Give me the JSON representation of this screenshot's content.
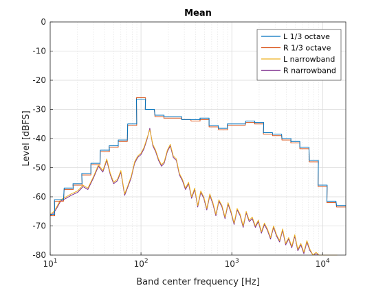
{
  "chart_data": {
    "type": "line",
    "title": "Mean",
    "xlabel": "Band center frequency [Hz]",
    "ylabel": "Level [dBFS]",
    "xscale": "log",
    "xlim": [
      10,
      18000
    ],
    "ylim": [
      -80,
      0
    ],
    "grid": true,
    "legend_position": "top-right",
    "x_ticks": [
      {
        "value": 10,
        "base": "10",
        "exp": "1"
      },
      {
        "value": 100,
        "base": "10",
        "exp": "2"
      },
      {
        "value": 1000,
        "base": "10",
        "exp": "3"
      },
      {
        "value": 10000,
        "base": "10",
        "exp": "4"
      }
    ],
    "y_ticks": [
      "0",
      "-10",
      "-20",
      "-30",
      "-40",
      "-50",
      "-60",
      "-70",
      "-80"
    ],
    "y_tick_values": [
      0,
      -10,
      -20,
      -30,
      -40,
      -50,
      -60,
      -70,
      -80
    ],
    "series": [
      {
        "name": "L 1/3 octave",
        "color": "#0072BD",
        "style": "stairs",
        "x": [
          10,
          12.5,
          16,
          20,
          25,
          31.5,
          40,
          50,
          63,
          80,
          100,
          125,
          160,
          200,
          250,
          315,
          400,
          500,
          630,
          800,
          1000,
          1250,
          1600,
          2000,
          2500,
          3150,
          4000,
          5000,
          6300,
          8000,
          10000,
          12500,
          16000
        ],
        "values": [
          -66,
          -61,
          -57,
          -55.5,
          -52,
          -48.5,
          -44,
          -42.5,
          -40.5,
          -35,
          -26.5,
          -30,
          -32,
          -32.5,
          -32.5,
          -33.5,
          -33.5,
          -33,
          -35.5,
          -36.5,
          -35,
          -35,
          -34,
          -34.5,
          -38,
          -38.5,
          -40,
          -41,
          -43,
          -47.5,
          -56,
          -61.5,
          -63
        ]
      },
      {
        "name": "R 1/3 octave",
        "color": "#D95319",
        "style": "stairs",
        "x": [
          10,
          12.5,
          16,
          20,
          25,
          31.5,
          40,
          50,
          63,
          80,
          100,
          125,
          160,
          200,
          250,
          315,
          400,
          500,
          630,
          800,
          1000,
          1250,
          1600,
          2000,
          2500,
          3150,
          4000,
          5000,
          6300,
          8000,
          10000,
          12500,
          16000
        ],
        "values": [
          -66.5,
          -61.5,
          -57.5,
          -56,
          -52.5,
          -49,
          -44.5,
          -43,
          -41,
          -35.5,
          -26,
          -30,
          -32.5,
          -33,
          -33,
          -33.5,
          -34,
          -33.5,
          -36,
          -37,
          -35.5,
          -35.5,
          -34.5,
          -35,
          -38.5,
          -39,
          -40.5,
          -41.5,
          -43.5,
          -48,
          -56.5,
          -62,
          -63.5
        ]
      },
      {
        "name": "L narrowband",
        "color": "#EDB120",
        "style": "line",
        "x": [
          10,
          11,
          12,
          13,
          15,
          17,
          20,
          23,
          26,
          30,
          34,
          38,
          42,
          46,
          50,
          55,
          60,
          66,
          72,
          78,
          85,
          92,
          100,
          108,
          116,
          125,
          135,
          145,
          156,
          168,
          180,
          195,
          210,
          227,
          245,
          265,
          286,
          309,
          334,
          361,
          390,
          421,
          455,
          491,
          530,
          573,
          619,
          668,
          721,
          779,
          841,
          908,
          981,
          1059,
          1144,
          1236,
          1334,
          1441,
          1556,
          1681,
          1815,
          1960,
          2117,
          2286,
          2469,
          2667,
          2880,
          3110,
          3359,
          3628,
          3918,
          4231,
          4570,
          4935,
          5330,
          5757,
          6217,
          6714,
          7251,
          7831,
          8458,
          9134,
          9865,
          10654,
          11506,
          12427,
          13421,
          14495
        ],
        "values": [
          -66,
          -65,
          -63,
          -61,
          -60,
          -59,
          -58,
          -56,
          -57,
          -53,
          -49,
          -51,
          -47,
          -52,
          -55,
          -54,
          -51,
          -59,
          -56,
          -53,
          -48,
          -46,
          -45,
          -43,
          -40,
          -37,
          -42,
          -44,
          -47,
          -49,
          -48,
          -44,
          -42,
          -46,
          -47,
          -52,
          -54,
          -57,
          -55,
          -60,
          -57,
          -63,
          -58,
          -60,
          -64,
          -59,
          -62,
          -66,
          -61,
          -63,
          -67,
          -62,
          -65,
          -69,
          -64,
          -66,
          -70,
          -65,
          -68,
          -67,
          -70,
          -68,
          -72,
          -69,
          -71,
          -74,
          -70,
          -73,
          -75,
          -71,
          -76,
          -74,
          -77,
          -73,
          -78,
          -76,
          -79,
          -75,
          -78,
          -80,
          -79,
          -80,
          -80,
          -80,
          -80,
          -80,
          -80,
          -80
        ]
      },
      {
        "name": "R narrowband",
        "color": "#7E2F8E",
        "style": "line",
        "x": [
          10,
          11,
          12,
          13,
          15,
          17,
          20,
          23,
          26,
          30,
          34,
          38,
          42,
          46,
          50,
          55,
          60,
          66,
          72,
          78,
          85,
          92,
          100,
          108,
          116,
          125,
          135,
          145,
          156,
          168,
          180,
          195,
          210,
          227,
          245,
          265,
          286,
          309,
          334,
          361,
          390,
          421,
          455,
          491,
          530,
          573,
          619,
          668,
          721,
          779,
          841,
          908,
          981,
          1059,
          1144,
          1236,
          1334,
          1441,
          1556,
          1681,
          1815,
          1960,
          2117,
          2286,
          2469,
          2667,
          2880,
          3110,
          3359,
          3628,
          3918,
          4231,
          4570,
          4935,
          5330,
          5757,
          6217,
          6714,
          7251,
          7831,
          8458,
          9134,
          9865,
          10654,
          11506,
          12427,
          13421,
          14495
        ],
        "values": [
          -66.5,
          -65.5,
          -63.5,
          -61.5,
          -60.5,
          -59.5,
          -58.5,
          -56.5,
          -57.5,
          -53.5,
          -49.5,
          -51.5,
          -47.5,
          -52.5,
          -55.5,
          -54.5,
          -51.5,
          -59.5,
          -56.5,
          -53.5,
          -48.5,
          -46.5,
          -45.5,
          -43.5,
          -40.5,
          -36.5,
          -42.5,
          -44.5,
          -47.5,
          -49.5,
          -48.5,
          -44.5,
          -42.5,
          -46.5,
          -47.5,
          -52.5,
          -54.5,
          -57.5,
          -55.5,
          -60.5,
          -57.5,
          -63.5,
          -58.5,
          -60.5,
          -64.5,
          -59.5,
          -62.5,
          -66.5,
          -61.5,
          -63.5,
          -67.5,
          -62.5,
          -65.5,
          -69.5,
          -64.5,
          -66.5,
          -70.5,
          -65.5,
          -68.5,
          -67.5,
          -70.5,
          -68.5,
          -72.5,
          -69.5,
          -71.5,
          -74.5,
          -70.5,
          -73.5,
          -75.5,
          -71.5,
          -76.5,
          -74.5,
          -77.5,
          -73.5,
          -78.5,
          -76.5,
          -79.5,
          -75.5,
          -78.5,
          -80,
          -79.5,
          -80,
          -80,
          -80,
          -80,
          -80,
          -80,
          -80
        ]
      }
    ]
  }
}
